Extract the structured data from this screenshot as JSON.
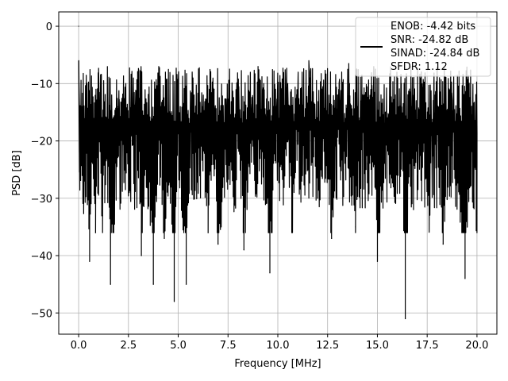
{
  "chart_data": {
    "type": "line",
    "title": "",
    "xlabel": "Frequency [MHz]",
    "ylabel": "PSD [dB]",
    "xlim": [
      -1.0,
      21.0
    ],
    "ylim": [
      -53.7,
      2.5
    ],
    "xticks": [
      0.0,
      2.5,
      5.0,
      7.5,
      10.0,
      12.5,
      15.0,
      17.5,
      20.0
    ],
    "xtick_labels": [
      "0.0",
      "2.5",
      "5.0",
      "7.5",
      "10.0",
      "12.5",
      "15.0",
      "17.5",
      "20.0"
    ],
    "yticks": [
      0,
      -10,
      -20,
      -30,
      -40,
      -50
    ],
    "ytick_labels": [
      "0",
      "−10",
      "−20",
      "−30",
      "−40",
      "−50"
    ],
    "grid": true,
    "legend_position": "top-right",
    "series": [
      {
        "name": "ENOB: -4.42 bits",
        "color": "#000000",
        "style": "noisy PSD spectrum, band between about -35 and -5 dB",
        "x": [
          0.0,
          0.02,
          0.1,
          0.25,
          0.4,
          0.55,
          0.7,
          0.85,
          1.0,
          1.2,
          1.5,
          1.6,
          2.0,
          2.5,
          3.0,
          3.15,
          3.4,
          3.75,
          4.0,
          4.3,
          4.6,
          4.8,
          5.0,
          5.4,
          5.7,
          6.0,
          6.2,
          6.5,
          6.8,
          7.0,
          7.4,
          7.8,
          8.0,
          8.3,
          8.6,
          8.95,
          9.3,
          9.6,
          9.9,
          10.2,
          10.5,
          10.7,
          11.0,
          11.2,
          11.6,
          12.0,
          12.4,
          12.7,
          13.0,
          13.3,
          13.6,
          13.9,
          14.2,
          14.5,
          14.8,
          15.0,
          15.4,
          15.8,
          16.2,
          16.4,
          16.7,
          17.0,
          17.3,
          17.6,
          17.9,
          18.3,
          18.7,
          19.0,
          19.4,
          19.7,
          20.0
        ],
        "y": [
          0.0,
          -12.0,
          -20.0,
          -28.0,
          -18.0,
          -41.0,
          -15.0,
          -36.0,
          -12.0,
          -33.0,
          -20.0,
          -45.0,
          -14.0,
          -25.0,
          -11.0,
          -40.0,
          -16.0,
          -45.0,
          -12.0,
          -37.0,
          -18.0,
          -48.0,
          -15.0,
          -45.0,
          -10.0,
          -24.0,
          -14.0,
          -36.0,
          -11.0,
          -38.0,
          -18.0,
          -31.0,
          -11.0,
          -39.0,
          -16.0,
          -26.0,
          -10.0,
          -43.0,
          -14.0,
          -25.0,
          -10.0,
          -35.0,
          -12.0,
          -27.0,
          -9.0,
          -30.0,
          -14.0,
          -37.0,
          -12.0,
          -25.0,
          -10.0,
          -35.0,
          -13.0,
          -24.0,
          -11.0,
          -41.0,
          -15.0,
          -28.0,
          -10.0,
          -51.0,
          -14.0,
          -26.0,
          -11.0,
          -31.0,
          -12.0,
          -38.0,
          -13.0,
          -28.0,
          -44.0,
          -14.0,
          -36.0
        ]
      }
    ],
    "legend_lines": [
      "ENOB: -4.42 bits",
      "SNR: -24.82 dB",
      "SINAD: -24.84 dB",
      "SFDR: 1.12"
    ]
  }
}
